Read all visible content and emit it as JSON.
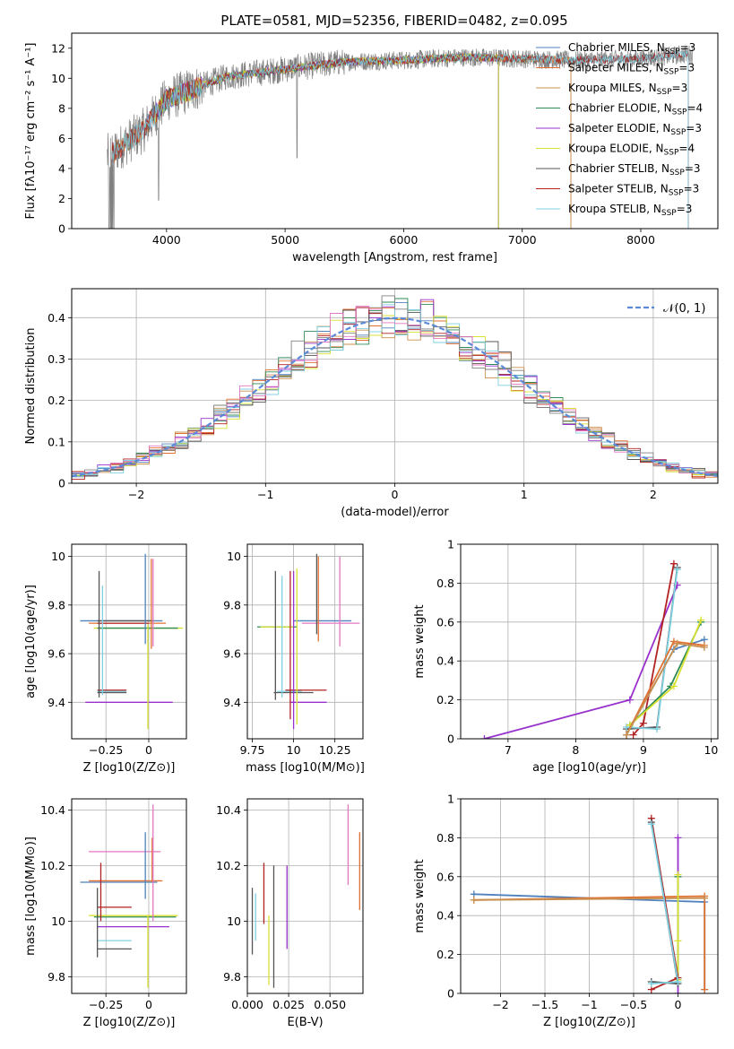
{
  "figure_title": "PLATE=0581, MJD=52356, FIBERID=0482, z=0.095",
  "models": [
    {
      "name": "Chabrier MILES",
      "nssp": "3",
      "color": "#4f81bd"
    },
    {
      "name": "Salpeter MILES",
      "nssp": "3",
      "color": "#e07030"
    },
    {
      "name": "Kroupa MILES",
      "nssp": "3",
      "color": "#c89050"
    },
    {
      "name": "Chabrier ELODIE",
      "nssp": "4",
      "color": "#2e8b57"
    },
    {
      "name": "Salpeter ELODIE",
      "nssp": "3",
      "color": "#9932cc"
    },
    {
      "name": "Kroupa ELODIE",
      "nssp": "4",
      "color": "#d8e030"
    },
    {
      "name": "Chabrier STELIB",
      "nssp": "3",
      "color": "#555555"
    },
    {
      "name": "Salpeter STELIB",
      "nssp": "3",
      "color": "#b22222"
    },
    {
      "name": "Kroupa STELIB",
      "nssp": "3",
      "color": "#7fd0e0"
    }
  ],
  "extra_colors": {
    "data": "#808080",
    "pink": "#e377c2",
    "normal_curve": "#5b8bd8"
  },
  "chart_data": [
    {
      "id": "spectrum",
      "type": "line",
      "title": "",
      "xlabel": "wavelength [Angstrom, rest frame]",
      "ylabel": "Flux [fλ10⁻¹⁷ erg cm⁻² s⁻¹ A⁻¹]",
      "xlim": [
        3200,
        8650
      ],
      "ylim": [
        0,
        13
      ],
      "xticks": [
        4000,
        5000,
        6000,
        7000,
        8000
      ],
      "yticks": [
        0,
        2,
        4,
        6,
        8,
        10,
        12
      ],
      "legend": "right",
      "continuum": {
        "x": [
          3500,
          3800,
          4000,
          4200,
          4500,
          5000,
          5500,
          6000,
          6500,
          7000,
          7400,
          8000,
          8400
        ],
        "y": [
          4.8,
          6.5,
          8.6,
          9.2,
          10.1,
          10.6,
          11.1,
          11.2,
          11.4,
          11.3,
          11.2,
          11.3,
          11.6
        ]
      },
      "series_ranges": [
        {
          "model": "Chabrier MILES",
          "x_range": [
            3540,
            7410
          ]
        },
        {
          "model": "Salpeter MILES",
          "x_range": [
            3540,
            7410
          ]
        },
        {
          "model": "Kroupa MILES",
          "x_range": [
            3540,
            7410
          ]
        },
        {
          "model": "Chabrier ELODIE",
          "x_range": [
            3900,
            6800
          ]
        },
        {
          "model": "Salpeter ELODIE",
          "x_range": [
            3900,
            6800
          ]
        },
        {
          "model": "Kroupa ELODIE",
          "x_range": [
            3900,
            6800
          ]
        },
        {
          "model": "Chabrier STELIB",
          "x_range": [
            3540,
            8400
          ]
        },
        {
          "model": "Salpeter STELIB",
          "x_range": [
            3540,
            8400
          ]
        },
        {
          "model": "Kroupa STELIB",
          "x_range": [
            3540,
            8400
          ]
        }
      ]
    },
    {
      "id": "residuals",
      "type": "line",
      "title": "",
      "xlabel": "(data-model)/error",
      "ylabel": "Normed distribution",
      "xlim": [
        -2.5,
        2.5
      ],
      "ylim": [
        0,
        0.47
      ],
      "xticks": [
        -2,
        -1,
        0,
        1,
        2
      ],
      "yticks": [
        0.0,
        0.1,
        0.2,
        0.3,
        0.4
      ],
      "grid": true,
      "legend": "top-right",
      "legend_label": "𝒩(0, 1)",
      "bin_width": 0.1
    },
    {
      "id": "z-age",
      "type": "scatter",
      "xlabel": "Z [log10(Z/Z⊙)]",
      "ylabel": "age [log10(age/yr)]",
      "xlim": [
        -0.45,
        0.22
      ],
      "ylim": [
        9.25,
        10.05
      ],
      "xticks": [
        -0.25,
        0.0
      ],
      "yticks": [
        9.4,
        9.6,
        9.8,
        10.0
      ],
      "grid": true,
      "errorbars": [
        {
          "h": [
            -0.4,
            0.08,
            9.735
          ],
          "color": "#4f81bd"
        },
        {
          "h": [
            -0.35,
            0.1,
            9.725
          ],
          "color": "#e07030"
        },
        {
          "h": [
            -0.32,
            0.2,
            9.705
          ],
          "color": "#d8e030"
        },
        {
          "h": [
            -0.3,
            0.17,
            9.705
          ],
          "color": "#2e8b57"
        },
        {
          "h": [
            -0.3,
            0.0,
            9.725
          ],
          "color": "#b22222"
        },
        {
          "h": [
            -0.3,
            0.03,
            9.735
          ],
          "color": "#555555"
        },
        {
          "h": [
            -0.37,
            0.14,
            9.4
          ],
          "color": "#9932cc"
        },
        {
          "h": [
            -0.3,
            -0.13,
            9.445
          ],
          "color": "#7fd0e0"
        },
        {
          "h": [
            -0.3,
            -0.13,
            9.44
          ],
          "color": "#555555"
        },
        {
          "h": [
            -0.3,
            -0.13,
            9.45
          ],
          "color": "#b22222"
        },
        {
          "v": [
            -0.29,
            9.42,
            9.94
          ],
          "color": "#555555"
        },
        {
          "v": [
            -0.27,
            9.43,
            9.88
          ],
          "color": "#7fd0e0"
        },
        {
          "v": [
            -0.02,
            9.64,
            10.01
          ],
          "color": "#4f81bd"
        },
        {
          "v": [
            0.015,
            9.62,
            9.99
          ],
          "color": "#e07030"
        },
        {
          "v": [
            0.025,
            9.63,
            9.99
          ],
          "color": "#e377c2"
        },
        {
          "v": [
            -0.005,
            9.29,
            9.72
          ],
          "color": "#d8e030"
        }
      ]
    },
    {
      "id": "mass-age",
      "type": "scatter",
      "xlabel": "mass [log10(M/M⊙)]",
      "ylabel": "",
      "xlim": [
        9.72,
        10.42
      ],
      "ylim": [
        9.25,
        10.05
      ],
      "xticks": [
        9.75,
        10.0,
        10.25
      ],
      "yticks": [
        9.4,
        9.6,
        9.8,
        10.0
      ],
      "grid": true,
      "errorbars": [
        {
          "h": [
            9.78,
            10.02,
            9.71
          ],
          "color": "#2e8b57"
        },
        {
          "h": [
            9.8,
            10.0,
            9.71
          ],
          "color": "#d8e030"
        },
        {
          "h": [
            10.0,
            10.35,
            9.735
          ],
          "color": "#4f81bd"
        },
        {
          "h": [
            10.05,
            10.4,
            9.725
          ],
          "color": "#e377c2"
        },
        {
          "h": [
            9.88,
            10.12,
            9.44
          ],
          "color": "#555555"
        },
        {
          "h": [
            9.9,
            10.05,
            9.445
          ],
          "color": "#7fd0e0"
        },
        {
          "h": [
            9.95,
            10.2,
            9.45
          ],
          "color": "#b22222"
        },
        {
          "h": [
            9.98,
            10.2,
            9.4
          ],
          "color": "#9932cc"
        },
        {
          "v": [
            9.93,
            9.42,
            9.92
          ],
          "color": "#7fd0e0"
        },
        {
          "v": [
            9.89,
            9.41,
            9.94
          ],
          "color": "#555555"
        },
        {
          "v": [
            9.98,
            9.33,
            9.94
          ],
          "color": "#b22222"
        },
        {
          "v": [
            10.0,
            9.29,
            9.94
          ],
          "color": "#9932cc"
        },
        {
          "v": [
            10.02,
            9.31,
            9.95
          ],
          "color": "#d8e030"
        },
        {
          "v": [
            10.14,
            9.68,
            10.01
          ],
          "color": "#555555"
        },
        {
          "v": [
            10.15,
            9.65,
            10.0
          ],
          "color": "#e07030"
        },
        {
          "v": [
            10.28,
            9.63,
            10.0
          ],
          "color": "#e377c2"
        }
      ]
    },
    {
      "id": "mass-weight-age",
      "type": "line",
      "xlabel": "age [log10(age/yr)]",
      "ylabel": "mass weight",
      "xlim": [
        6.3,
        10.1
      ],
      "ylim": [
        0,
        1
      ],
      "xticks": [
        7,
        8,
        9,
        10
      ],
      "yticks": [
        0.0,
        0.2,
        0.4,
        0.6,
        0.8,
        1.0
      ],
      "grid": true,
      "series": [
        {
          "model": "Salpeter ELODIE",
          "points": [
            [
              6.65,
              0.0
            ],
            [
              8.8,
              0.2
            ],
            [
              9.5,
              0.79
            ]
          ]
        },
        {
          "model": "Salpeter STELIB",
          "points": [
            [
              8.85,
              0.02
            ],
            [
              9.0,
              0.08
            ],
            [
              9.45,
              0.9
            ]
          ]
        },
        {
          "model": "Chabrier STELIB",
          "points": [
            [
              8.75,
              0.05
            ],
            [
              9.2,
              0.06
            ],
            [
              9.5,
              0.88
            ]
          ]
        },
        {
          "model": "Kroupa STELIB",
          "points": [
            [
              8.75,
              0.06
            ],
            [
              9.2,
              0.05
            ],
            [
              9.5,
              0.87
            ]
          ]
        },
        {
          "model": "Chabrier ELODIE",
          "points": [
            [
              8.8,
              0.07
            ],
            [
              9.4,
              0.27
            ],
            [
              9.85,
              0.6
            ]
          ]
        },
        {
          "model": "Kroupa ELODIE",
          "points": [
            [
              8.8,
              0.07
            ],
            [
              9.45,
              0.27
            ],
            [
              9.85,
              0.61
            ]
          ]
        },
        {
          "model": "Chabrier MILES",
          "points": [
            [
              8.75,
              0.02
            ],
            [
              9.45,
              0.46
            ],
            [
              9.9,
              0.51
            ]
          ]
        },
        {
          "model": "Salpeter MILES",
          "points": [
            [
              8.75,
              0.02
            ],
            [
              9.45,
              0.5
            ],
            [
              9.9,
              0.48
            ]
          ]
        },
        {
          "model": "Kroupa MILES",
          "points": [
            [
              8.75,
              0.02
            ],
            [
              9.5,
              0.49
            ],
            [
              9.9,
              0.47
            ]
          ]
        }
      ]
    },
    {
      "id": "z-mass",
      "type": "scatter",
      "xlabel": "Z [log10(Z/Z⊙)]",
      "ylabel": "mass [log10(M/M⊙)]",
      "xlim": [
        -0.45,
        0.22
      ],
      "ylim": [
        9.74,
        10.44
      ],
      "xticks": [
        -0.25,
        0.0
      ],
      "yticks": [
        9.8,
        10.0,
        10.2,
        10.4
      ],
      "grid": true,
      "errorbars": [
        {
          "h": [
            -0.4,
            0.05,
            10.14
          ],
          "color": "#4f81bd"
        },
        {
          "h": [
            -0.35,
            0.08,
            10.145
          ],
          "color": "#e07030"
        },
        {
          "h": [
            -0.35,
            0.07,
            10.25
          ],
          "color": "#e377c2"
        },
        {
          "h": [
            -0.35,
            0.17,
            10.02
          ],
          "color": "#d8e030"
        },
        {
          "h": [
            -0.32,
            0.16,
            10.015
          ],
          "color": "#2e8b57"
        },
        {
          "h": [
            -0.3,
            0.12,
            9.98
          ],
          "color": "#9932cc"
        },
        {
          "h": [
            -0.3,
            -0.1,
            10.05
          ],
          "color": "#b22222"
        },
        {
          "h": [
            -0.3,
            -0.1,
            9.93
          ],
          "color": "#7fd0e0"
        },
        {
          "h": [
            -0.3,
            -0.1,
            9.9
          ],
          "color": "#555555"
        },
        {
          "v": [
            -0.28,
            10.0,
            10.21
          ],
          "color": "#b22222"
        },
        {
          "v": [
            -0.3,
            9.87,
            10.12
          ],
          "color": "#555555"
        },
        {
          "v": [
            -0.02,
            10.08,
            10.32
          ],
          "color": "#4f81bd"
        },
        {
          "v": [
            0.02,
            10.14,
            10.3
          ],
          "color": "#e07030"
        },
        {
          "v": [
            0.025,
            10.0,
            10.42
          ],
          "color": "#e377c2"
        },
        {
          "v": [
            -0.005,
            9.76,
            10.02
          ],
          "color": "#d8e030"
        }
      ]
    },
    {
      "id": "ebv-mass",
      "type": "scatter",
      "xlabel": "E(B-V)",
      "ylabel": "",
      "xlim": [
        0.0,
        0.07
      ],
      "ylim": [
        9.74,
        10.44
      ],
      "xticks": [
        0.0,
        0.025,
        0.05
      ],
      "xticklabels": [
        "0.000",
        "0.025",
        "0.050"
      ],
      "yticks": [
        9.8,
        10.0,
        10.2,
        10.4
      ],
      "grid": true,
      "errorbars": [
        {
          "v": [
            0.003,
            9.88,
            10.12
          ],
          "color": "#555555"
        },
        {
          "v": [
            0.005,
            9.93,
            10.1
          ],
          "color": "#7fd0e0"
        },
        {
          "v": [
            0.01,
            9.99,
            10.21
          ],
          "color": "#b22222"
        },
        {
          "v": [
            0.013,
            9.77,
            10.02
          ],
          "color": "#d8e030"
        },
        {
          "v": [
            0.016,
            9.76,
            10.2
          ],
          "color": "#555555"
        },
        {
          "v": [
            0.024,
            9.9,
            10.2
          ],
          "color": "#9932cc"
        },
        {
          "v": [
            0.061,
            10.13,
            10.42
          ],
          "color": "#e377c2"
        },
        {
          "v": [
            0.068,
            10.04,
            10.32
          ],
          "color": "#e07030"
        }
      ]
    },
    {
      "id": "mass-weight-z",
      "type": "line",
      "xlabel": "Z [log10(Z/Z⊙)]",
      "ylabel": "mass weight",
      "xlim": [
        -2.45,
        0.45
      ],
      "ylim": [
        0,
        1
      ],
      "xticks": [
        -2.0,
        -1.5,
        -1.0,
        -0.5,
        0.0
      ],
      "yticks": [
        0.0,
        0.2,
        0.4,
        0.6,
        0.8,
        1.0
      ],
      "grid": true,
      "series": [
        {
          "model": "Chabrier MILES",
          "points": [
            [
              -2.3,
              0.51
            ],
            [
              0.3,
              0.47
            ],
            [
              0.3,
              0.02
            ]
          ]
        },
        {
          "model": "Salpeter MILES",
          "points": [
            [
              -2.3,
              0.48
            ],
            [
              0.3,
              0.5
            ],
            [
              0.3,
              0.02
            ]
          ]
        },
        {
          "model": "Kroupa MILES",
          "points": [
            [
              -2.3,
              0.48
            ],
            [
              0.3,
              0.49
            ]
          ]
        },
        {
          "model": "Salpeter ELODIE",
          "points": [
            [
              0.0,
              0.0
            ],
            [
              0.0,
              0.8
            ]
          ]
        },
        {
          "model": "Chabrier ELODIE",
          "points": [
            [
              0.0,
              0.07
            ],
            [
              0.0,
              0.6
            ]
          ]
        },
        {
          "model": "Kroupa ELODIE",
          "points": [
            [
              0.0,
              0.07
            ],
            [
              0.0,
              0.27
            ],
            [
              0.0,
              0.61
            ]
          ]
        },
        {
          "model": "Salpeter STELIB",
          "points": [
            [
              -0.3,
              0.02
            ],
            [
              0.0,
              0.08
            ],
            [
              -0.3,
              0.9
            ]
          ]
        },
        {
          "model": "Chabrier STELIB",
          "points": [
            [
              -0.3,
              0.06
            ],
            [
              0.0,
              0.05
            ],
            [
              -0.3,
              0.88
            ]
          ]
        },
        {
          "model": "Kroupa STELIB",
          "points": [
            [
              -0.3,
              0.05
            ],
            [
              0.0,
              0.06
            ],
            [
              -0.3,
              0.87
            ]
          ]
        }
      ]
    }
  ]
}
